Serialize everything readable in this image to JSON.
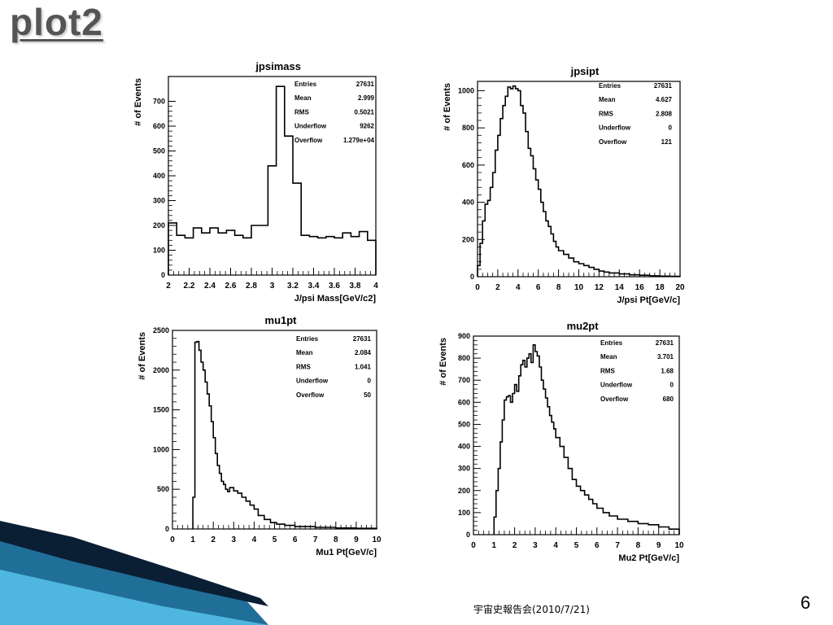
{
  "slide": {
    "title": "plot2",
    "footer": "宇宙史報告会(2010/7/21)",
    "page_number": "6"
  },
  "colors": {
    "title": "#555555",
    "deco_dark": "#0a1e34",
    "deco_mid": "#1f6f99",
    "deco_light": "#4fb6e0"
  },
  "chart_data": [
    {
      "id": "jpsimass",
      "type": "histogram",
      "title": "jpsimass",
      "xlabel": "J/psi Mass[GeV/c2]",
      "ylabel": "# of Events",
      "xlim": [
        2,
        4
      ],
      "ylim": [
        0,
        800
      ],
      "xticks": [
        2,
        2.2,
        2.4,
        2.6,
        2.8,
        3,
        3.2,
        3.4,
        3.6,
        3.8,
        4
      ],
      "xticklabels": [
        "2",
        "2.2",
        "2.4",
        "2.6",
        "2.8",
        "3",
        "3.2",
        "3.4",
        "3.6",
        "3.8",
        "4"
      ],
      "yticks": [
        0,
        100,
        200,
        300,
        400,
        500,
        600,
        700
      ],
      "yticklabels": [
        "0",
        "100",
        "200",
        "300",
        "400",
        "500",
        "600",
        "700"
      ],
      "bin_edges": [
        2.0,
        2.04,
        2.08,
        2.12,
        2.16,
        2.2,
        2.24,
        2.28,
        2.32,
        2.36,
        2.4,
        2.44,
        2.48,
        2.52,
        2.56,
        2.6,
        2.64,
        2.68,
        2.72,
        2.76,
        2.8,
        2.84,
        2.88,
        2.92,
        2.96,
        3.0,
        3.04,
        3.08,
        3.12,
        3.16,
        3.2,
        3.24,
        3.28,
        3.32,
        3.36,
        3.4,
        3.44,
        3.48,
        3.52,
        3.56,
        3.6,
        3.64,
        3.68,
        3.72,
        3.76,
        3.8,
        3.84,
        3.88,
        3.92,
        3.96,
        4.0
      ],
      "values": [
        210,
        210,
        160,
        160,
        150,
        150,
        190,
        190,
        170,
        170,
        190,
        190,
        170,
        170,
        180,
        180,
        160,
        160,
        150,
        150,
        200,
        200,
        200,
        200,
        440,
        440,
        760,
        760,
        560,
        560,
        370,
        370,
        160,
        160,
        155,
        155,
        150,
        150,
        155,
        155,
        150,
        150,
        170,
        170,
        155,
        155,
        175,
        175,
        140,
        140
      ],
      "stats": [
        {
          "label": "Entries",
          "value": "27631"
        },
        {
          "label": "Mean",
          "value": "2.999"
        },
        {
          "label": "RMS",
          "value": "0.5021"
        },
        {
          "label": "Underflow",
          "value": "9262"
        },
        {
          "label": "Overflow",
          "value": "1.279e+04"
        }
      ]
    },
    {
      "id": "jpsipt",
      "type": "histogram",
      "title": "jpsipt",
      "xlabel": "J/psi Pt[GeV/c]",
      "ylabel": "# of Events",
      "xlim": [
        0,
        20
      ],
      "ylim": [
        0,
        1050
      ],
      "xticks": [
        0,
        2,
        4,
        6,
        8,
        10,
        12,
        14,
        16,
        18,
        20
      ],
      "xticklabels": [
        "0",
        "2",
        "4",
        "6",
        "8",
        "10",
        "12",
        "14",
        "16",
        "18",
        "20"
      ],
      "yticks": [
        0,
        200,
        400,
        600,
        800,
        1000
      ],
      "yticklabels": [
        "0",
        "200",
        "400",
        "600",
        "800",
        "1000"
      ],
      "bin_edges": [
        0.0,
        0.25,
        0.5,
        0.75,
        1.0,
        1.25,
        1.5,
        1.75,
        2.0,
        2.25,
        2.5,
        2.75,
        3.0,
        3.25,
        3.5,
        3.75,
        4.0,
        4.25,
        4.5,
        4.75,
        5.0,
        5.25,
        5.5,
        5.75,
        6.0,
        6.25,
        6.5,
        6.75,
        7.0,
        7.25,
        7.5,
        7.75,
        8.0,
        8.5,
        9.0,
        9.5,
        10.0,
        10.5,
        11.0,
        11.5,
        12.0,
        12.5,
        13.0,
        14.0,
        15.0,
        16.0,
        17.0,
        18.0,
        19.0,
        20.0
      ],
      "values": [
        60,
        180,
        300,
        390,
        410,
        480,
        560,
        680,
        760,
        850,
        920,
        970,
        1020,
        1010,
        1025,
        1010,
        1000,
        920,
        880,
        780,
        690,
        650,
        580,
        520,
        470,
        400,
        350,
        300,
        270,
        230,
        190,
        160,
        140,
        120,
        100,
        80,
        70,
        60,
        50,
        40,
        30,
        25,
        20,
        15,
        10,
        8,
        5,
        3,
        2
      ],
      "stats": [
        {
          "label": "Entries",
          "value": "27631"
        },
        {
          "label": "Mean",
          "value": "4.627"
        },
        {
          "label": "RMS",
          "value": "2.808"
        },
        {
          "label": "Underflow",
          "value": "0"
        },
        {
          "label": "Overflow",
          "value": "121"
        }
      ]
    },
    {
      "id": "mu1pt",
      "type": "histogram",
      "title": "mu1pt",
      "xlabel": "Mu1 Pt[GeV/c]",
      "ylabel": "# of Events",
      "xlim": [
        0,
        10
      ],
      "ylim": [
        0,
        2500
      ],
      "xticks": [
        0,
        1,
        2,
        3,
        4,
        5,
        6,
        7,
        8,
        9,
        10
      ],
      "xticklabels": [
        "0",
        "1",
        "2",
        "3",
        "4",
        "5",
        "6",
        "7",
        "8",
        "9",
        "10"
      ],
      "yticks": [
        0,
        500,
        1000,
        1500,
        2000,
        2500
      ],
      "yticklabels": [
        "0",
        "500",
        "1000",
        "1500",
        "2000",
        "2500"
      ],
      "bin_edges": [
        1.0,
        1.1,
        1.2,
        1.3,
        1.4,
        1.5,
        1.6,
        1.7,
        1.8,
        1.9,
        2.0,
        2.1,
        2.2,
        2.3,
        2.4,
        2.5,
        2.6,
        2.7,
        2.8,
        3.0,
        3.2,
        3.4,
        3.6,
        3.8,
        4.0,
        4.2,
        4.5,
        4.8,
        5.1,
        5.5,
        6.0,
        7.0,
        8.0,
        9.0,
        10.0
      ],
      "values": [
        400,
        2350,
        2360,
        2250,
        2100,
        2000,
        1850,
        1700,
        1550,
        1350,
        1150,
        950,
        800,
        700,
        600,
        560,
        500,
        470,
        520,
        480,
        450,
        400,
        350,
        300,
        250,
        170,
        120,
        80,
        60,
        45,
        30,
        20,
        12,
        8
      ],
      "stats": [
        {
          "label": "Entries",
          "value": "27631"
        },
        {
          "label": "Mean",
          "value": "2.084"
        },
        {
          "label": "RMS",
          "value": "1.041"
        },
        {
          "label": "Underflow",
          "value": "0"
        },
        {
          "label": "Overflow",
          "value": "50"
        }
      ]
    },
    {
      "id": "mu2pt",
      "type": "histogram",
      "title": "mu2pt",
      "xlabel": "Mu2 Pt[GeV/c]",
      "ylabel": "# of Events",
      "xlim": [
        0,
        10
      ],
      "ylim": [
        0,
        900
      ],
      "xticks": [
        0,
        1,
        2,
        3,
        4,
        5,
        6,
        7,
        8,
        9,
        10
      ],
      "xticklabels": [
        "0",
        "1",
        "2",
        "3",
        "4",
        "5",
        "6",
        "7",
        "8",
        "9",
        "10"
      ],
      "yticks": [
        0,
        100,
        200,
        300,
        400,
        500,
        600,
        700,
        800,
        900
      ],
      "yticklabels": [
        "0",
        "100",
        "200",
        "300",
        "400",
        "500",
        "600",
        "700",
        "800",
        "900"
      ],
      "bin_edges": [
        1.0,
        1.1,
        1.2,
        1.3,
        1.4,
        1.5,
        1.6,
        1.7,
        1.8,
        1.9,
        2.0,
        2.1,
        2.2,
        2.3,
        2.4,
        2.5,
        2.6,
        2.7,
        2.8,
        2.9,
        3.0,
        3.1,
        3.2,
        3.3,
        3.4,
        3.5,
        3.6,
        3.7,
        3.8,
        3.9,
        4.0,
        4.2,
        4.4,
        4.6,
        4.8,
        5.0,
        5.2,
        5.4,
        5.6,
        5.8,
        6.0,
        6.3,
        6.6,
        7.0,
        7.5,
        8.0,
        8.5,
        9.0,
        9.5,
        10.0
      ],
      "values": [
        80,
        200,
        300,
        420,
        520,
        610,
        625,
        630,
        600,
        640,
        680,
        650,
        720,
        770,
        790,
        760,
        800,
        820,
        780,
        860,
        830,
        810,
        760,
        700,
        660,
        620,
        580,
        540,
        510,
        480,
        440,
        400,
        350,
        300,
        250,
        220,
        200,
        180,
        160,
        140,
        120,
        100,
        85,
        70,
        60,
        50,
        45,
        35,
        25
      ],
      "stats": [
        {
          "label": "Entries",
          "value": "27631"
        },
        {
          "label": "Mean",
          "value": "3.701"
        },
        {
          "label": "RMS",
          "value": "1.68"
        },
        {
          "label": "Underflow",
          "value": "0"
        },
        {
          "label": "Overflow",
          "value": "680"
        }
      ]
    }
  ]
}
